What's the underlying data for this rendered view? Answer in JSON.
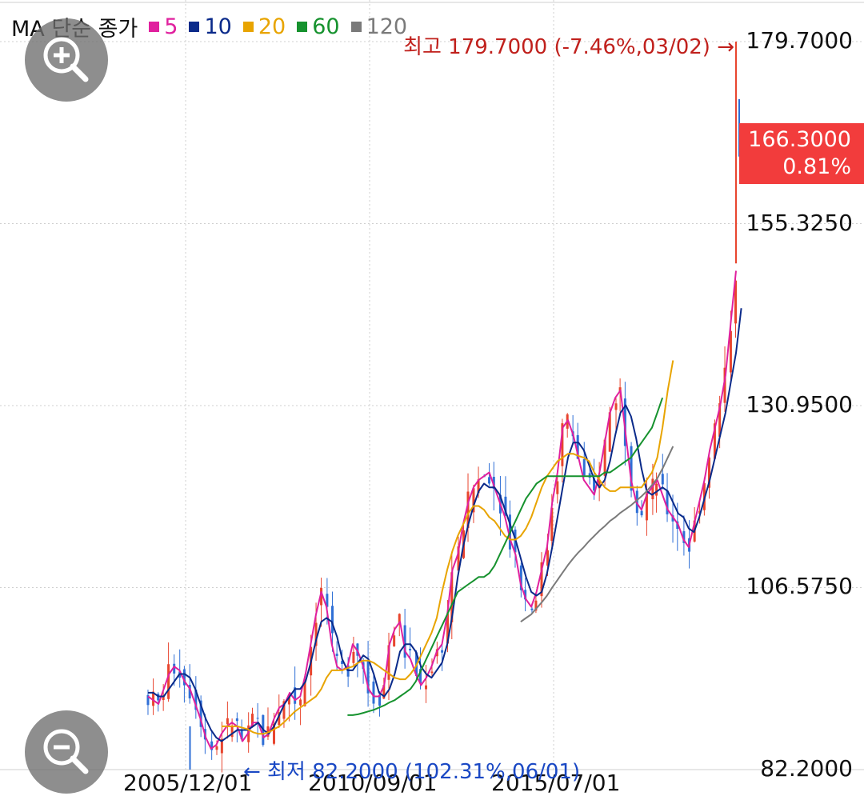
{
  "legend": {
    "title": "MA 단순 종가",
    "items": [
      {
        "label": "5",
        "color": "#e0209e"
      },
      {
        "label": "10",
        "color": "#0a2a8a"
      },
      {
        "label": "20",
        "color": "#e8a400"
      },
      {
        "label": "60",
        "color": "#16922e"
      },
      {
        "label": "120",
        "color": "#7a7a7a"
      }
    ]
  },
  "price_badge": {
    "value": "166.3000",
    "change": "0.81%"
  },
  "annotations": {
    "high": "최고 179.7000 (-7.46%,03/02) →",
    "low": "← 최저 82.2000 (102.31%,06/01)"
  },
  "chart_data": {
    "type": "candlestick",
    "y_ticks": [
      "179.7000",
      "155.3250",
      "130.9500",
      "106.5750",
      "82.2000"
    ],
    "ylim": [
      82.2,
      179.7
    ],
    "x_ticks": [
      "2005/12/01",
      "2010/09/01",
      "2015/07/01"
    ],
    "current_price": 166.3,
    "current_change_pct": 0.81,
    "high": {
      "value": 179.7,
      "pct_from_current": -7.46,
      "date": "03/02"
    },
    "low": {
      "value": 82.2,
      "pct_from_current": 102.31,
      "date": "06/01"
    },
    "colors": {
      "up": "#e8452e",
      "down": "#2f6fd6"
    },
    "series": [
      {
        "name": "5",
        "color": "#e0209e",
        "values": [
          92,
          91.5,
          91,
          93,
          95,
          96,
          95.5,
          94,
          93,
          91,
          89,
          86.5,
          85,
          85.5,
          87,
          88,
          88.5,
          88,
          86,
          87,
          88.5,
          88.5,
          86.5,
          87,
          89,
          90.5,
          91,
          92.5,
          91.5,
          92,
          95,
          99,
          103,
          106,
          104,
          99,
          96,
          95.5,
          96,
          99,
          98,
          96,
          93,
          92,
          92,
          93.5,
          99,
          101,
          102,
          98,
          97,
          95,
          93.5,
          94.5,
          96,
          98,
          99,
          103,
          109,
          111,
          115,
          118,
          120,
          121,
          121.5,
          122,
          120,
          118,
          116,
          113,
          111,
          107,
          105,
          104,
          106,
          109,
          112,
          118,
          122,
          128,
          129,
          127,
          124,
          121,
          120,
          119,
          122,
          126,
          130,
          132,
          133,
          127,
          121,
          118,
          117,
          119,
          120,
          121,
          119,
          117,
          116,
          115,
          113,
          112,
          115,
          118,
          121,
          125,
          128,
          131,
          135,
          142,
          149
        ]
      },
      {
        "name": "10",
        "color": "#0a2a8a",
        "values": [
          92.5,
          92.5,
          92,
          92,
          93,
          94,
          95,
          95,
          94.5,
          93,
          91,
          89,
          87.5,
          86.5,
          86,
          86.5,
          87,
          87.5,
          87.5,
          87.5,
          88,
          88.5,
          87.5,
          87,
          88,
          89.5,
          91,
          92,
          93,
          93,
          94,
          96.5,
          99.5,
          102,
          102.5,
          102,
          100,
          97,
          95.5,
          95.5,
          96.5,
          97.5,
          97,
          95,
          92.5,
          92,
          93,
          95,
          98,
          99,
          99,
          98,
          96,
          95,
          94.5,
          95.5,
          96.5,
          99,
          103,
          108,
          112,
          115,
          117.5,
          119.5,
          120.5,
          120,
          120,
          119,
          117,
          115,
          113,
          110.5,
          108,
          106,
          105.5,
          106,
          108.5,
          112,
          116,
          120,
          124,
          126,
          126,
          125,
          123,
          121,
          120,
          121,
          123.5,
          127,
          130,
          131,
          129.5,
          126.5,
          122.5,
          119.5,
          119,
          119.5,
          120,
          119.5,
          118,
          116.5,
          116,
          114.5,
          114,
          116,
          118.5,
          121,
          124,
          127,
          130,
          134,
          138,
          144
        ]
      },
      {
        "name": "20",
        "color": "#e8a400",
        "values": [
          null,
          null,
          null,
          null,
          null,
          null,
          null,
          null,
          null,
          null,
          null,
          null,
          null,
          null,
          88,
          88,
          88,
          88,
          87.8,
          87.6,
          87.2,
          87,
          87,
          87.2,
          87.6,
          88,
          88.6,
          89.3,
          90,
          90.5,
          91,
          91.5,
          92,
          93,
          94.5,
          95.5,
          95.5,
          95.5,
          95.8,
          96,
          96.5,
          96.8,
          96.8,
          96.5,
          96,
          95.5,
          95,
          94.5,
          94.3,
          94.3,
          95,
          96,
          97.5,
          99,
          100.5,
          102.5,
          106,
          109,
          111.5,
          113.5,
          115,
          116.5,
          117.5,
          117.5,
          117,
          116,
          115.5,
          114.5,
          113.5,
          113,
          113,
          113.5,
          114.5,
          116,
          118,
          120,
          121.5,
          122.5,
          123.5,
          124,
          124.5,
          124.5,
          124.2,
          124,
          123.5,
          122,
          121,
          120,
          119.5,
          119.5,
          120,
          120,
          120,
          120,
          120,
          121,
          122,
          124,
          128,
          133,
          137
        ]
      },
      {
        "name": "60",
        "color": "#16922e",
        "values": [
          null,
          null,
          null,
          null,
          null,
          null,
          null,
          null,
          null,
          null,
          null,
          null,
          null,
          null,
          null,
          null,
          null,
          null,
          null,
          null,
          null,
          null,
          null,
          null,
          null,
          null,
          null,
          null,
          null,
          null,
          null,
          null,
          null,
          null,
          null,
          null,
          null,
          null,
          89.5,
          89.5,
          89.6,
          89.8,
          90,
          90.2,
          90.5,
          90.8,
          91.2,
          91.5,
          92,
          92.5,
          93,
          94,
          95.5,
          97,
          98.5,
          100,
          101.5,
          103,
          104.5,
          106,
          106.5,
          107,
          107.5,
          108,
          108,
          108.5,
          109.5,
          111,
          112.5,
          114,
          115.5,
          117,
          118.5,
          119.5,
          120.5,
          121,
          121.5,
          121.5,
          121.5,
          121.5,
          121.5,
          121.5,
          121.5,
          121.5,
          121.5,
          121.5,
          121.5,
          122,
          122,
          122.5,
          123,
          123.5,
          124,
          125,
          126,
          127,
          128,
          130,
          132
        ]
      },
      {
        "name": "120",
        "color": "#7a7a7a",
        "values": [
          null,
          null,
          null,
          null,
          null,
          null,
          null,
          null,
          null,
          null,
          null,
          null,
          null,
          null,
          null,
          null,
          null,
          null,
          null,
          null,
          null,
          null,
          null,
          null,
          null,
          null,
          null,
          null,
          null,
          null,
          null,
          null,
          null,
          null,
          null,
          null,
          null,
          null,
          null,
          null,
          null,
          null,
          null,
          null,
          null,
          null,
          null,
          null,
          null,
          null,
          null,
          null,
          null,
          null,
          null,
          null,
          null,
          null,
          null,
          null,
          null,
          null,
          null,
          null,
          null,
          null,
          null,
          null,
          null,
          null,
          null,
          102,
          102.5,
          103,
          103.8,
          104.6,
          105.5,
          106.6,
          107.6,
          108.6,
          109.6,
          110.5,
          111.3,
          112,
          112.8,
          113.5,
          114.2,
          114.8,
          115.5,
          116,
          116.6,
          117.1,
          117.6,
          118.2,
          118.8,
          119.5,
          120.3,
          121.2,
          122.5,
          124,
          125.5
        ]
      }
    ]
  }
}
